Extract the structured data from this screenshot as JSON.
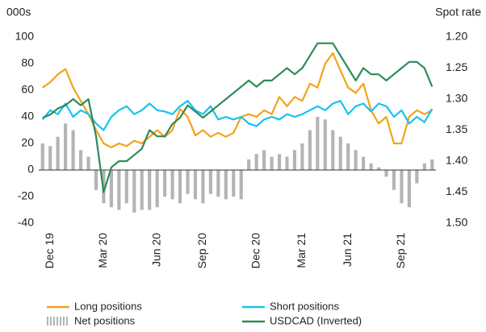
{
  "chart_data": {
    "type": "combo",
    "y_label": "000s",
    "y2_label": "Spot rate",
    "categories": [
      null,
      "Dec 19",
      null,
      null,
      null,
      null,
      null,
      null,
      "Mar 20",
      null,
      null,
      null,
      null,
      null,
      null,
      "Jun 20",
      null,
      null,
      null,
      null,
      null,
      "Sep 20",
      null,
      null,
      null,
      null,
      null,
      null,
      "Dec 20",
      null,
      null,
      null,
      null,
      null,
      "Mar 21",
      null,
      null,
      null,
      null,
      null,
      "Jun 21",
      null,
      null,
      null,
      null,
      null,
      null,
      "Sep 21",
      null,
      null,
      null,
      null
    ],
    "ylim": [
      -40,
      100
    ],
    "yticks": [
      -40,
      -20,
      0,
      20,
      40,
      60,
      80,
      100
    ],
    "y2lim": [
      1.5,
      1.2
    ],
    "y2_inverted": true,
    "y2ticks": [
      {
        "value": 1.2,
        "label": "1.20"
      },
      {
        "value": 1.25,
        "label": "1.25"
      },
      {
        "value": 1.3,
        "label": "1.30"
      },
      {
        "value": 1.35,
        "label": "1.35"
      },
      {
        "value": 1.4,
        "label": "1.40"
      },
      {
        "value": 1.45,
        "label": "1.45"
      },
      {
        "value": 1.5,
        "label": "1.50"
      }
    ],
    "series": [
      {
        "name": "Long positions",
        "type": "line",
        "color": "#f5a21b",
        "values": [
          62,
          66,
          72,
          76,
          62,
          52,
          42,
          30,
          20,
          17,
          20,
          18,
          22,
          20,
          25,
          30,
          25,
          30,
          46,
          40,
          26,
          30,
          25,
          28,
          25,
          28,
          40,
          42,
          40,
          45,
          42,
          55,
          48,
          55,
          52,
          65,
          62,
          80,
          88,
          75,
          62,
          58,
          65,
          45,
          35,
          40,
          20,
          20,
          40,
          45,
          42,
          45
        ]
      },
      {
        "name": "Short positions",
        "type": "line",
        "color": "#17c3ee",
        "values": [
          38,
          45,
          42,
          50,
          40,
          45,
          42,
          35,
          30,
          40,
          45,
          48,
          42,
          45,
          50,
          45,
          44,
          42,
          48,
          52,
          45,
          42,
          48,
          38,
          40,
          38,
          40,
          35,
          33,
          38,
          40,
          38,
          42,
          40,
          42,
          45,
          48,
          45,
          50,
          52,
          42,
          48,
          50,
          44,
          50,
          48,
          40,
          45,
          35,
          40,
          36,
          46
        ]
      },
      {
        "name": "Net positions",
        "type": "bar",
        "color": "#b4b4b4",
        "values": [
          20,
          18,
          25,
          35,
          30,
          15,
          10,
          -15,
          -25,
          -28,
          -30,
          -25,
          -32,
          -30,
          -30,
          -28,
          -20,
          -22,
          -25,
          -18,
          -22,
          -25,
          -18,
          -20,
          -22,
          -20,
          -22,
          8,
          12,
          15,
          10,
          12,
          10,
          15,
          20,
          30,
          40,
          38,
          30,
          25,
          20,
          15,
          10,
          5,
          2,
          -5,
          -15,
          -25,
          -28,
          -10,
          5,
          8
        ]
      },
      {
        "name": "USDCAD (Inverted)",
        "type": "line",
        "axis": "y2",
        "color": "#2e8b57",
        "values": [
          1.33,
          1.325,
          1.315,
          1.31,
          1.3,
          1.31,
          1.3,
          1.36,
          1.45,
          1.41,
          1.4,
          1.4,
          1.39,
          1.38,
          1.35,
          1.36,
          1.36,
          1.34,
          1.33,
          1.31,
          1.32,
          1.33,
          1.32,
          1.31,
          1.3,
          1.29,
          1.28,
          1.27,
          1.28,
          1.27,
          1.27,
          1.26,
          1.25,
          1.26,
          1.25,
          1.23,
          1.21,
          1.21,
          1.21,
          1.23,
          1.25,
          1.27,
          1.25,
          1.26,
          1.26,
          1.27,
          1.26,
          1.25,
          1.24,
          1.24,
          1.25,
          1.28
        ]
      }
    ]
  }
}
